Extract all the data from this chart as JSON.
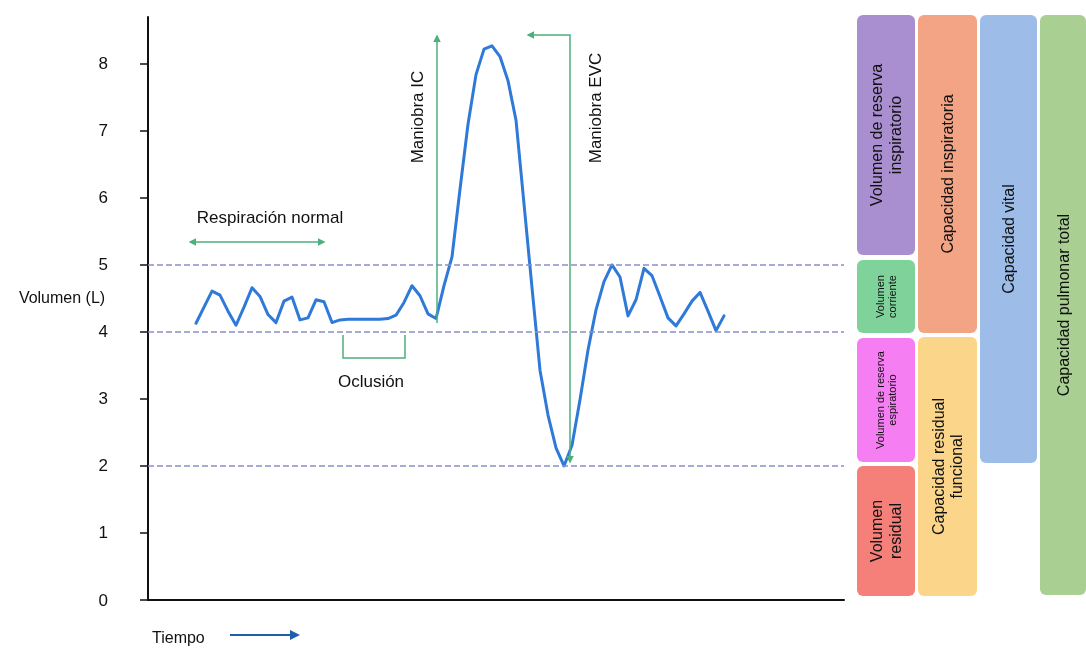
{
  "chart_data": [
    {
      "type": "line",
      "xlabel": "Tiempo",
      "ylabel": "Volumen (L)",
      "tick_labels": "y",
      "marker": "none",
      "line_style": "solid",
      "grid": false,
      "categories": [
        null,
        null,
        null,
        null,
        null,
        null,
        null,
        null,
        null,
        null,
        null,
        null,
        null,
        null,
        null,
        null,
        null,
        null,
        null,
        null,
        null,
        null,
        null,
        null,
        null,
        null,
        null,
        null,
        null,
        null,
        null,
        null,
        null,
        null,
        null,
        null,
        null,
        null,
        null,
        null,
        null,
        null,
        null,
        null,
        null,
        null,
        null,
        null,
        null,
        null,
        null,
        null,
        null,
        null,
        null,
        null,
        null,
        null,
        null,
        null,
        null,
        null,
        null,
        null,
        null,
        null,
        null,
        null,
        null,
        null,
        null,
        null,
        null,
        null,
        null,
        null,
        null,
        null,
        null,
        null,
        null,
        null,
        null,
        null,
        null,
        null,
        null,
        null
      ],
      "series": [
        {
          "color": "#2f7ad8",
          "values": [
            null,
            null,
            null,
            null,
            null,
            null,
            4.13,
            4.37,
            4.61,
            4.55,
            4.31,
            4.1,
            4.37,
            4.66,
            4.53,
            4.26,
            4.14,
            4.46,
            4.52,
            4.18,
            4.21,
            4.48,
            4.45,
            4.14,
            4.18,
            4.19,
            4.19,
            4.19,
            4.19,
            4.19,
            4.2,
            4.25,
            4.44,
            4.69,
            4.54,
            4.27,
            4.2,
            4.69,
            5.12,
            6.13,
            7.1,
            7.84,
            8.22,
            8.27,
            8.11,
            7.75,
            7.16,
            5.91,
            4.66,
            3.43,
            2.76,
            2.27,
            2.0,
            2.31,
            2.99,
            3.73,
            4.33,
            4.75,
            5.0,
            4.82,
            4.24,
            4.48,
            4.95,
            4.84,
            4.53,
            4.21,
            4.09,
            4.27,
            4.46,
            4.59,
            4.31,
            4.02,
            4.24,
            null,
            null,
            null,
            null,
            null,
            null,
            null,
            null,
            null,
            null,
            null,
            null,
            null,
            null,
            null
          ]
        }
      ],
      "ylim": [
        0,
        8.7
      ],
      "yticks": [
        0,
        1,
        2,
        3,
        4,
        5,
        6,
        7,
        8
      ],
      "ref_lines": [
        {
          "axis": "y",
          "value": 5,
          "color": "#8a8fc8",
          "line_style": "dashed"
        },
        {
          "axis": "y",
          "value": 4,
          "color": "#8a8fc8",
          "line_style": "dashed"
        },
        {
          "axis": "y",
          "value": 2,
          "color": "#8a8fc8",
          "line_style": "dashed"
        }
      ],
      "annotations": [
        "Respiración normal",
        "Oclusión",
        "Maniobra IC",
        "Maniobra EVC"
      ]
    },
    {
      "type": "other",
      "colors": [
        "#a98fcf",
        "#7fd39a",
        "#f57ef2",
        "#f5807a",
        "#f2a484",
        "#fbd68a",
        "#9dbde8",
        "#a9cf92"
      ],
      "annotations": [
        "Volumen de reserva inspiratorio",
        "Volumen corriente",
        "Volumen de reserva espiratorio",
        "Volumen residual",
        "Capacidad inspiratoria",
        "Capacidad residual funcional",
        "Capacidad vital",
        "Capacidad pulmonar total"
      ]
    }
  ]
}
